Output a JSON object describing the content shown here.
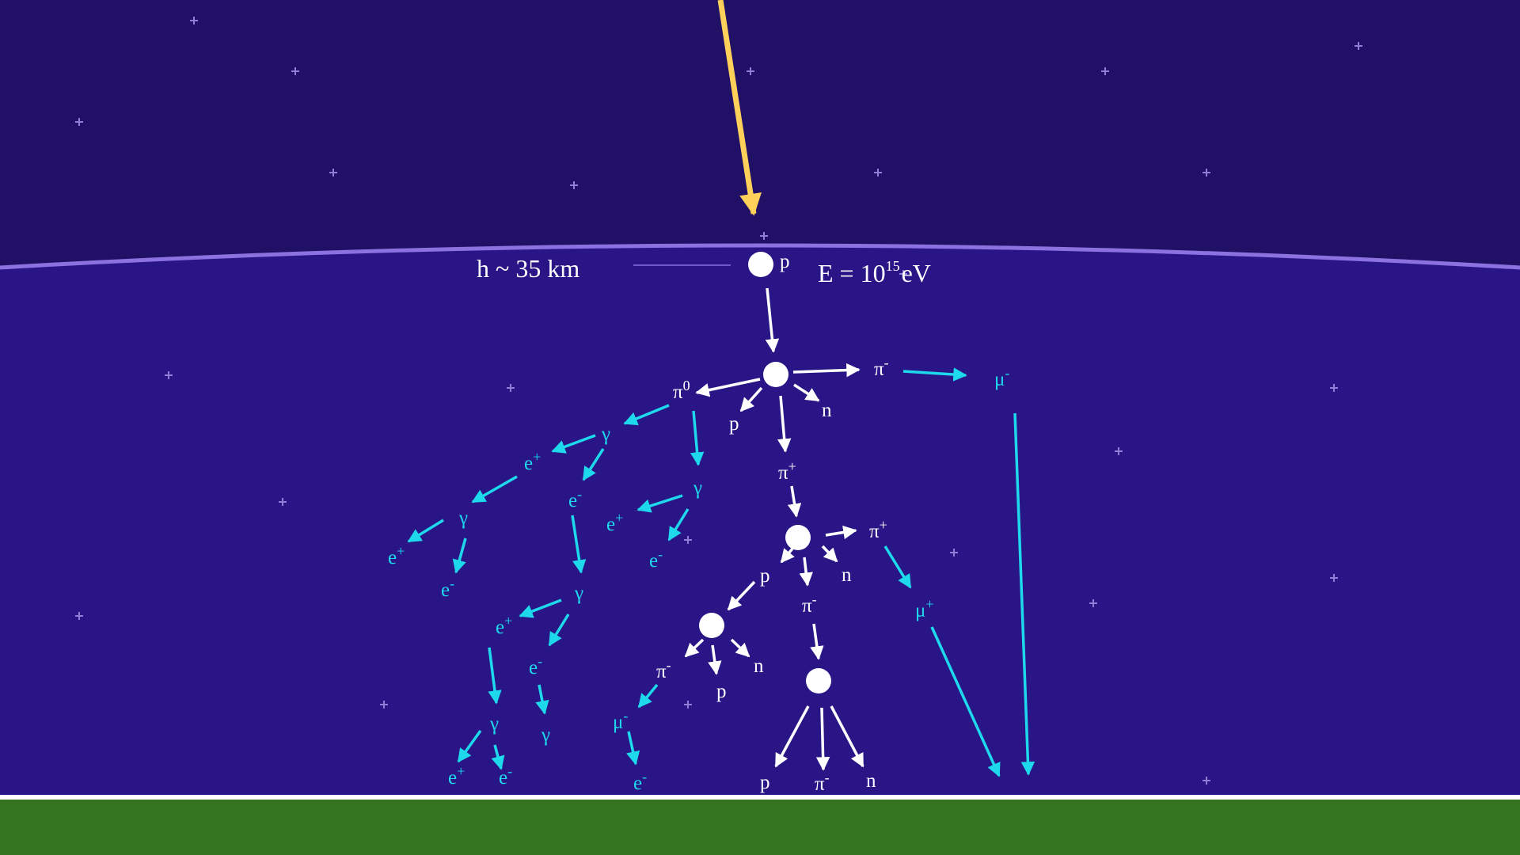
{
  "colors": {
    "space": "#201066",
    "atmosphere": "#2a1587",
    "horizon": "#8b72e0",
    "ground": "#36751f",
    "primary_ray": "#ffd05a",
    "hadron": "#ffffff",
    "lepton_photon": "#1ed8ec",
    "star": "#8f7ed8"
  },
  "annotations": {
    "height": "h ~ 35 km",
    "energy_base": "E = 10",
    "energy_exp": "15",
    "energy_unit": "eV"
  },
  "particles": {
    "p": "p",
    "n": "n",
    "pi0": "π",
    "pi0_sup": "0",
    "pi_minus": "π",
    "pi_plus": "π",
    "minus": "-",
    "plus": "+",
    "mu": "μ",
    "e": "e",
    "gamma": "γ"
  },
  "icons": {
    "star": "star-icon",
    "arrow": "arrow-icon",
    "interaction": "interaction-vertex-icon"
  }
}
